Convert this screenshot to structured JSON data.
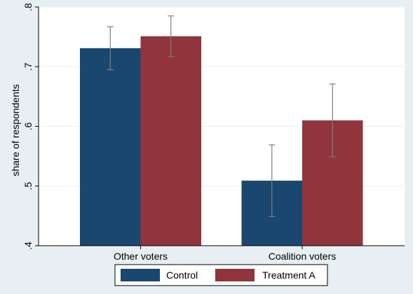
{
  "chart_data": {
    "type": "bar",
    "categories": [
      "Other voters",
      "Coalition voters"
    ],
    "series": [
      {
        "name": "Control",
        "values": [
          0.731,
          0.509
        ],
        "ci_low": [
          0.695,
          0.449
        ],
        "ci_high": [
          0.767,
          0.569
        ],
        "color": "#1a476f"
      },
      {
        "name": "Treatment A",
        "values": [
          0.751,
          0.61
        ],
        "ci_low": [
          0.717,
          0.549
        ],
        "ci_high": [
          0.785,
          0.671
        ],
        "color": "#90353b"
      }
    ],
    "ylabel": "share of respondents",
    "ylim": [
      0.4,
      0.8
    ],
    "yticks": [
      0.4,
      0.5,
      0.6,
      0.7,
      0.8
    ],
    "ytick_labels": [
      ".4",
      ".5",
      ".6",
      ".7",
      ".8"
    ],
    "grid": true,
    "legend_position": "bottom",
    "colors": {
      "background": "#e8eff2",
      "plot_background": "#ffffff",
      "gridline": "#eaf2f3",
      "error_bar": "#7f7f7f"
    }
  }
}
